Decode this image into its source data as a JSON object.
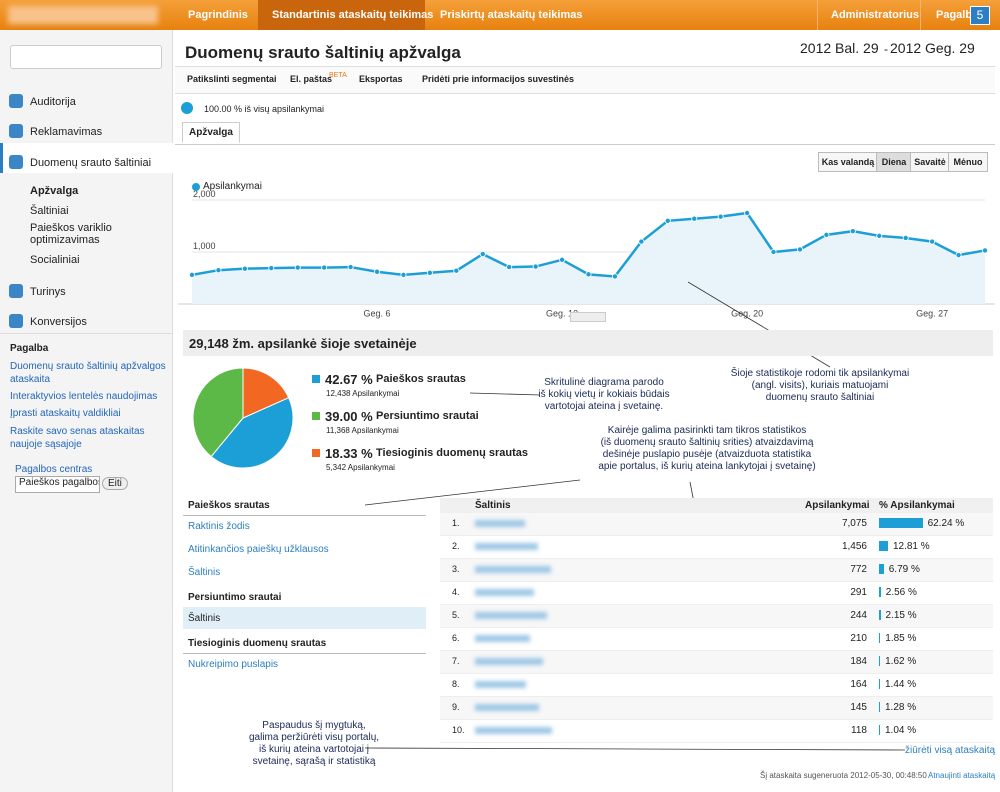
{
  "top_nav": {
    "tabs": [
      "Pagrindinis",
      "Standartinis ataskaitų teikimas",
      "Priskirtų ataskaitų teikimas"
    ],
    "right": [
      "Administratorius",
      "Pagalba"
    ],
    "badge": "5"
  },
  "sidebar": {
    "items": [
      "Auditorija",
      "Reklamavimas",
      "Duomenų srauto šaltiniai"
    ],
    "subitems": [
      "Apžvalga",
      "Šaltiniai",
      "Paieškos variklio optimizavimas",
      "Socialiniai"
    ],
    "items_after": [
      "Turinys",
      "Konversijos"
    ],
    "help_title": "Pagalba",
    "help_links": [
      "Duomenų srauto šaltinių apžvalgos ataskaita",
      "Interaktyvios lentelės naudojimas",
      "Įprasti ataskaitų valdikliai",
      "Raskite savo senas ataskaitas naujoje sąsajoje"
    ],
    "help_center": "Pagalbos centras",
    "search_value": "Paieškos pagalbos",
    "go": "Eiti"
  },
  "header": {
    "title": "Duomenų srauto šaltinių apžvalga",
    "date_start": "2012 Bal. 29",
    "date_sep": "-",
    "date_end": "2012 Geg. 29"
  },
  "toolbar": {
    "segments": "Patikslinti segmentai",
    "email": "El. paštas",
    "beta": "BETA",
    "export": "Eksportas",
    "dashboard": "Pridėti prie informacijos suvestinės"
  },
  "segment": "100.00 % iš visų apsilankymai",
  "tab": "Apžvalga",
  "time_buttons": [
    "Kas valandą",
    "Diena",
    "Savaitė",
    "Mėnuo"
  ],
  "chart_data": [
    {
      "type": "area",
      "series": [
        {
          "name": "Apsilankymai",
          "color": "#1c9fd6",
          "values": [
            560,
            650,
            680,
            690,
            700,
            700,
            710,
            620,
            560,
            600,
            640,
            960,
            710,
            720,
            850,
            570,
            530,
            1200,
            1600,
            1640,
            1680,
            1750,
            1000,
            1050,
            1330,
            1400,
            1310,
            1270,
            1200,
            940,
            1030
          ]
        }
      ],
      "categories": [
        null,
        null,
        null,
        null,
        null,
        null,
        null,
        "Geg. 6",
        null,
        null,
        null,
        null,
        null,
        null,
        "Geg. 13",
        null,
        null,
        null,
        null,
        null,
        null,
        "Geg. 20",
        null,
        null,
        null,
        null,
        null,
        null,
        "Geg. 27",
        null,
        null
      ],
      "ylim": [
        0,
        2000
      ],
      "yticks": [
        {
          "value": 1000,
          "label": "1,000"
        },
        {
          "value": 2000,
          "label": "2,000"
        }
      ],
      "grid": true
    },
    {
      "type": "pie",
      "title": "29,148 žm. apsilankė šioje svetainėje",
      "categories": [
        "Paieškos srautas",
        "Persiuntimo srautai",
        "Tiesioginis duomenų srautas"
      ],
      "values": [
        42.67,
        39.0,
        18.33
      ],
      "value_labels": [
        "42.67 %",
        "39.00 %",
        "18.33 %"
      ],
      "subtitles": [
        "12,438 Apsilankymai",
        "11,368 Apsilankymai",
        "5,342 Apsilankymai"
      ],
      "colors": [
        "#1c9fd6",
        "#5cb947",
        "#f26722"
      ]
    }
  ],
  "left_list": [
    {
      "heading": "Paieškos srautas",
      "links": [
        "Raktinis žodis",
        "Atitinkančios paieškų užklausos",
        "Šaltinis"
      ]
    },
    {
      "heading": "Persiuntimo srautai",
      "links": [
        "Šaltinis"
      ]
    },
    {
      "heading": "Tiesioginis duomenų srautas",
      "links": [
        "Nukreipimo puslapis"
      ]
    }
  ],
  "table": {
    "headers": [
      "Šaltinis",
      "Apsilankymai",
      "% Apsilankymai"
    ],
    "rows": [
      {
        "index": "1.",
        "visits": "7,075",
        "percent": 62.24,
        "percent_label": "62.24 %"
      },
      {
        "index": "2.",
        "visits": "1,456",
        "percent": 12.81,
        "percent_label": "12.81 %"
      },
      {
        "index": "3.",
        "visits": "772",
        "percent": 6.79,
        "percent_label": "6.79 %"
      },
      {
        "index": "4.",
        "visits": "291",
        "percent": 2.56,
        "percent_label": "2.56 %"
      },
      {
        "index": "5.",
        "visits": "244",
        "percent": 2.15,
        "percent_label": "2.15 %"
      },
      {
        "index": "6.",
        "visits": "210",
        "percent": 1.85,
        "percent_label": "1.85 %"
      },
      {
        "index": "7.",
        "visits": "184",
        "percent": 1.62,
        "percent_label": "1.62 %"
      },
      {
        "index": "8.",
        "visits": "164",
        "percent": 1.44,
        "percent_label": "1.44 %"
      },
      {
        "index": "9.",
        "visits": "145",
        "percent": 1.28,
        "percent_label": "1.28 %"
      },
      {
        "index": "10.",
        "visits": "118",
        "percent": 1.04,
        "percent_label": "1.04 %"
      }
    ],
    "view_all": "žiūrėti visą ataskaitą"
  },
  "footer": {
    "generated": "Šį ataskaita sugeneruota 2012-05-30, 00:48:50 -",
    "refresh": "Atnaujinti ataskaitą"
  },
  "annotations": [
    [
      "Šioje statistikoje rodomi tik apsilankymai",
      "(angl. visits), kuriais matuojami",
      "duomenų srauto šaltiniai"
    ],
    [
      "Skritulinė diagrama parodo",
      "iš kokių vietų ir kokiais būdais",
      "vartotojai ateina į svetainę."
    ],
    [
      "Kairėje galima pasirinkti tam tikros statistikos",
      "(iš duomenų srauto šaltinių srities) atvaizdavimą",
      "dešinėje puslapio pusėje (atvaizduota statistika",
      "apie portalus, iš kurių ateina lankytojai į svetainę)"
    ],
    [
      "Paspaudus šį mygtuką,",
      "galima peržiūrėti visų portalų,",
      "iš kurių ateina vartotojai į",
      "svetainę, sąrašą ir statistiką"
    ]
  ]
}
